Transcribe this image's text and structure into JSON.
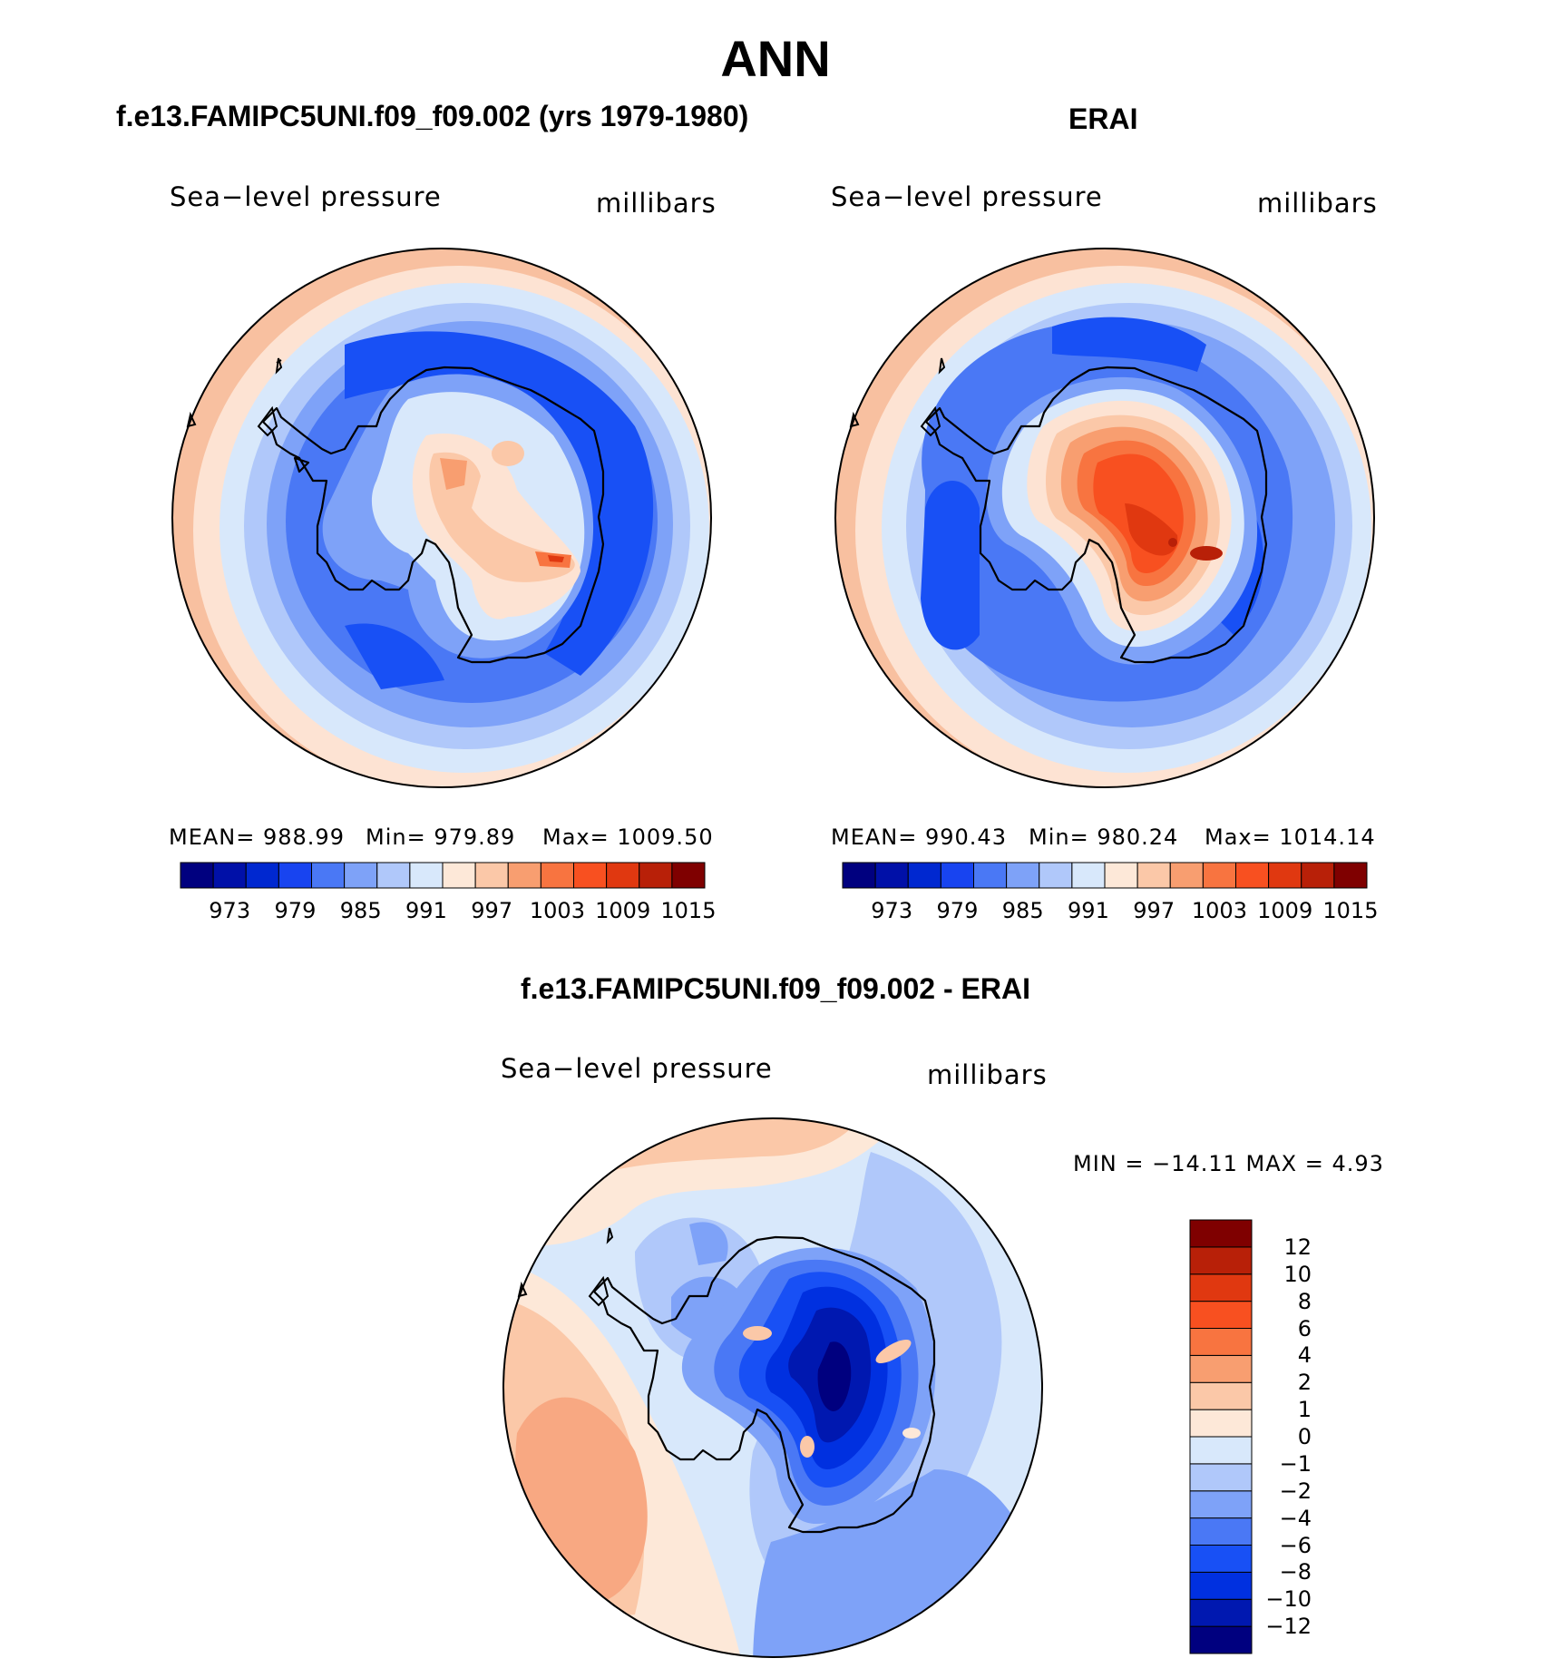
{
  "figure": {
    "title": "ANN"
  },
  "panels": {
    "model": {
      "title": "f.e13.FAMIPC5UNI.f09_f09.002 (yrs 1979-1980)",
      "variable": "Sea−level pressure",
      "units": "millibars",
      "stats": {
        "mean": "MEAN=  988.99",
        "min": "Min=  979.89",
        "max": "Max=  1009.50"
      }
    },
    "obs": {
      "title": "ERAI",
      "variable": "Sea−level pressure",
      "units": "millibars",
      "stats": {
        "mean": "MEAN=  990.43",
        "min": "Min=  980.24",
        "max": "Max=  1014.14"
      }
    },
    "diff": {
      "title": "f.e13.FAMIPC5UNI.f09_f09.002 - ERAI",
      "variable": "Sea−level pressure",
      "units": "millibars",
      "minmax": "MIN  =  −14.11  MAX  =     4.93"
    }
  },
  "colorbars": {
    "abs": {
      "colors": [
        "#00007f",
        "#0010a8",
        "#0028d0",
        "#1844f0",
        "#4a78f5",
        "#7ea2f8",
        "#b0c8fa",
        "#d8e8fb",
        "#fde8d8",
        "#fbc8a8",
        "#f89e70",
        "#f87440",
        "#f85020",
        "#e03810",
        "#b82008",
        "#7f0000"
      ],
      "tick_labels": [
        "973",
        "979",
        "985",
        "991",
        "997",
        "1003",
        "1009",
        "1015"
      ]
    },
    "diff": {
      "colors": [
        "#00007f",
        "#0018b0",
        "#0030e0",
        "#1850f5",
        "#4a78f5",
        "#7ea2f8",
        "#b0c8fa",
        "#d8e8fb",
        "#fde8d8",
        "#fbc8a8",
        "#f89e70",
        "#f87440",
        "#f85020",
        "#e03810",
        "#b82008",
        "#7f0000"
      ],
      "tick_labels": [
        "−12",
        "−10",
        "−8",
        "−6",
        "−4",
        "−2",
        "−1",
        "0",
        "1",
        "2",
        "4",
        "6",
        "8",
        "10",
        "12"
      ]
    }
  }
}
